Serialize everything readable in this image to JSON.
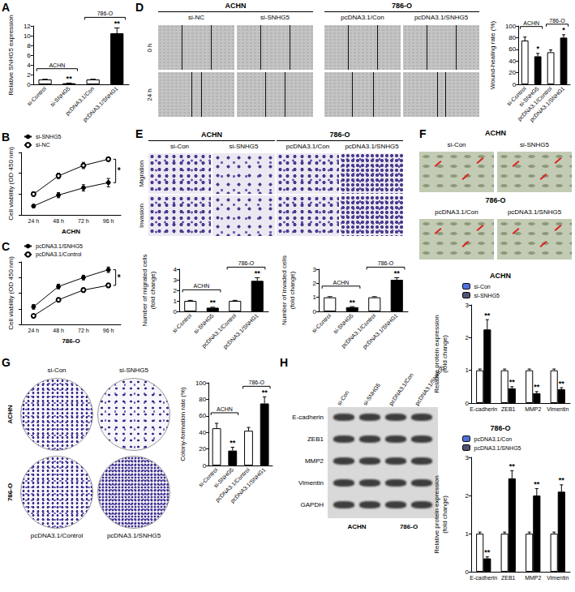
{
  "chart_data": [
    {
      "panel": "A",
      "type": "bar",
      "ylabel": "Relative SNHG5 expression",
      "categories": [
        "si-Control",
        "si-SNHG5",
        "pcDNA3.1/Con",
        "pcDNA3.1/SNHG1"
      ],
      "values": [
        1.0,
        0.22,
        1.0,
        10.5
      ],
      "errors": [
        0.05,
        0.04,
        0.06,
        1.1
      ],
      "colors": [
        "#ffffff",
        "#000000",
        "#ffffff",
        "#000000"
      ],
      "annotations": [
        null,
        "**",
        null,
        "**"
      ],
      "group_labels": [
        "ACHN",
        "786-O"
      ],
      "ylim": [
        0,
        12
      ],
      "yticks": [
        0,
        2,
        4,
        6,
        8,
        10,
        12
      ]
    },
    {
      "panel": "B",
      "type": "line",
      "xlabel": "ACHN",
      "ylabel": "Cell viability (OD 450 nm)",
      "categories": [
        "24 h",
        "48 h",
        "72 h",
        "96 h"
      ],
      "series": [
        {
          "name": "si-SNHG5",
          "color": "#000000",
          "marker": "filled_circle",
          "values": [
            0.17,
            0.38,
            0.52,
            0.62
          ],
          "errors": [
            0.03,
            0.05,
            0.06,
            0.08
          ]
        },
        {
          "name": "si-NC",
          "color": "#000000",
          "marker": "open_circle",
          "values": [
            0.4,
            0.75,
            0.95,
            1.07
          ],
          "errors": [
            0.04,
            0.05,
            0.06,
            0.04
          ]
        }
      ],
      "annotation": "*",
      "legend": "upper left",
      "ylim": [
        0,
        1.2
      ],
      "yticks": [
        0,
        0.4,
        0.8,
        1.2
      ],
      "tick_labels": "x"
    },
    {
      "panel": "C",
      "type": "line",
      "xlabel": "786-O",
      "ylabel": "Cell viability (OD 450 nm)",
      "categories": [
        "24 h",
        "48 h",
        "72 h",
        "96 h"
      ],
      "series": [
        {
          "name": "pcDNA3.1/SNHG5",
          "color": "#000000",
          "marker": "filled_circle",
          "values": [
            0.45,
            0.97,
            1.2,
            1.4
          ],
          "errors": [
            0.06,
            0.06,
            0.06,
            0.07
          ]
        },
        {
          "name": "pcDNA3.1/Control",
          "color": "#000000",
          "marker": "open_circle",
          "values": [
            0.22,
            0.63,
            0.88,
            1.0
          ],
          "errors": [
            0.04,
            0.05,
            0.05,
            0.05
          ]
        }
      ],
      "annotation": "*",
      "legend": "upper left",
      "ylim": [
        0,
        1.6
      ],
      "yticks": [
        0,
        0.4,
        0.8,
        1.2,
        1.6
      ],
      "tick_labels": "x"
    },
    {
      "type": "bar",
      "ylabel": "Wound-healing rate (%)",
      "categories": [
        "si-Control",
        "si-SNHG5",
        "pcDNA3.1/Control",
        "pcDNA3.1/SNHG1"
      ],
      "values": [
        75,
        48,
        55,
        80
      ],
      "errors": [
        6,
        5,
        4,
        5
      ],
      "colors": [
        "#ffffff",
        "#000000",
        "#ffffff",
        "#000000"
      ],
      "annotations": [
        null,
        "*",
        null,
        "*"
      ],
      "group_labels": [
        "ACHN",
        "786-O"
      ],
      "ylim": [
        0,
        100
      ],
      "yticks": [
        0,
        20,
        40,
        60,
        80,
        100
      ]
    },
    {
      "type": "bar",
      "ylabel": "Number of migrated cells\n(fold change)",
      "categories": [
        "si-Control",
        "si-SNHG5",
        "pcDNA3.1/Control",
        "pcDNA3.1/SNHG1"
      ],
      "values": [
        1,
        0.35,
        1,
        2.9
      ],
      "errors": [
        0.05,
        0.05,
        0.05,
        0.3
      ],
      "colors": [
        "#ffffff",
        "#000000",
        "#ffffff",
        "#000000"
      ],
      "annotations": [
        null,
        "**",
        null,
        "**"
      ],
      "group_labels": [
        "ACHN",
        "786-O"
      ],
      "ylim": [
        0,
        4
      ],
      "yticks": [
        0,
        1,
        2,
        3,
        4
      ]
    },
    {
      "type": "bar",
      "ylabel": "Number of invaded cells\n(fold change)",
      "categories": [
        "si-Control",
        "si-SNHG5",
        "pcDNA3.1/Control",
        "pcDNA3.1/SNHG1"
      ],
      "values": [
        1,
        0.3,
        1,
        2.25
      ],
      "errors": [
        0.05,
        0.04,
        0.05,
        0.15
      ],
      "colors": [
        "#ffffff",
        "#000000",
        "#ffffff",
        "#000000"
      ],
      "annotations": [
        null,
        "**",
        null,
        "**"
      ],
      "group_labels": [
        "ACHN",
        "786-O"
      ],
      "ylim": [
        0,
        3
      ],
      "yticks": [
        0,
        1,
        2,
        3
      ]
    },
    {
      "type": "bar",
      "ylabel": "Colony-formation rate (%)",
      "categories": [
        "si-Control",
        "si-SNHG5",
        "pcDNA3.1/Control",
        "pcDNA3.1/SNHG1"
      ],
      "values": [
        45,
        18,
        42,
        75
      ],
      "errors": [
        6,
        4,
        4,
        8
      ],
      "colors": [
        "#ffffff",
        "#000000",
        "#ffffff",
        "#000000"
      ],
      "annotations": [
        null,
        "**",
        null,
        "**"
      ],
      "group_labels": [
        "ACHN",
        "786-O"
      ],
      "ylim": [
        0,
        100
      ],
      "yticks": [
        0,
        20,
        40,
        60,
        80,
        100
      ]
    },
    {
      "type": "bar",
      "title": "ACHN",
      "ylabel": "Relative protein expression\n(fold change)",
      "categories": [
        "E-cadherin",
        "ZEB1",
        "MMP2",
        "Vimentin"
      ],
      "series": [
        {
          "name": "si-Con",
          "color": "#ffffff",
          "values": [
            1,
            1,
            1,
            1
          ],
          "errors": [
            0.04,
            0.04,
            0.04,
            0.04
          ]
        },
        {
          "name": "si-SNHG5",
          "color": "#000000",
          "values": [
            2.25,
            0.45,
            0.3,
            0.42
          ],
          "errors": [
            0.3,
            0.05,
            0.05,
            0.05
          ],
          "annotations": [
            "**",
            "**",
            "**",
            "**"
          ]
        }
      ],
      "legend": "upper left",
      "ylim": [
        0,
        3
      ],
      "yticks": [
        0,
        1,
        2,
        3
      ]
    },
    {
      "type": "bar",
      "title": "786-O",
      "ylabel": "Relative protein expression\n(fold change)",
      "categories": [
        "E-cadherin",
        "ZEB1",
        "MMP2",
        "Vimentin"
      ],
      "series": [
        {
          "name": "pcDNA3.1/Con",
          "color": "#ffffff",
          "values": [
            1,
            1,
            1,
            1
          ],
          "errors": [
            0.04,
            0.04,
            0.04,
            0.04
          ]
        },
        {
          "name": "pcDNA3.1/SNHG5",
          "color": "#000000",
          "values": [
            0.35,
            2.45,
            2.0,
            2.1
          ],
          "errors": [
            0.04,
            0.2,
            0.18,
            0.18
          ],
          "annotations": [
            "**",
            "**",
            "**",
            "**"
          ]
        }
      ],
      "legend": "upper left",
      "ylim": [
        0,
        3
      ],
      "yticks": [
        0,
        1,
        2,
        3
      ]
    }
  ],
  "image_panels": {
    "D": {
      "panel": "D",
      "groups": [
        {
          "title": "ACHN",
          "columns": [
            "si-NC",
            "si-SNHG5"
          ]
        },
        {
          "title": "786-O",
          "columns": [
            "pcDNA3.1/Con",
            "pcDNA3.1/SNHG5"
          ]
        }
      ],
      "rows": [
        "0 h",
        "24 h"
      ]
    },
    "E": {
      "panel": "E",
      "groups": [
        {
          "title": "ACHN",
          "columns": [
            "si-Con",
            "si-SNHG5"
          ]
        },
        {
          "title": "786-O",
          "columns": [
            "pcDNA3.1/Con",
            "pcDNA3.1/SNHG5"
          ]
        }
      ],
      "rows": [
        "Migration",
        "Invasion"
      ]
    },
    "F": {
      "panel": "F",
      "groups": [
        {
          "title": "ACHN",
          "columns": [
            "si-Con",
            "si-SNHG5"
          ]
        },
        {
          "title": "786-O",
          "columns": [
            "pcDNA3.1/Con",
            "pcDNA3.1/SNHG5"
          ]
        }
      ]
    },
    "G": {
      "panel": "G",
      "top_columns": [
        "si-Con",
        "si-SNHG5"
      ],
      "rows": [
        "ACHN",
        "786-O"
      ],
      "bottom_columns": [
        "pcDNA3.1/Control",
        "pcDNA3.1/SNHG5"
      ]
    },
    "H": {
      "panel": "H",
      "lanes": [
        "si-Con",
        "si-SNHG5",
        "pcDNA3.1/Con",
        "pcDNA3.1/SNHG5"
      ],
      "rows": [
        "E-cadherin",
        "ZEB1",
        "MMP2",
        "Vimentin",
        "GAPDH"
      ],
      "groups": [
        "ACHN",
        "786-O"
      ]
    }
  }
}
